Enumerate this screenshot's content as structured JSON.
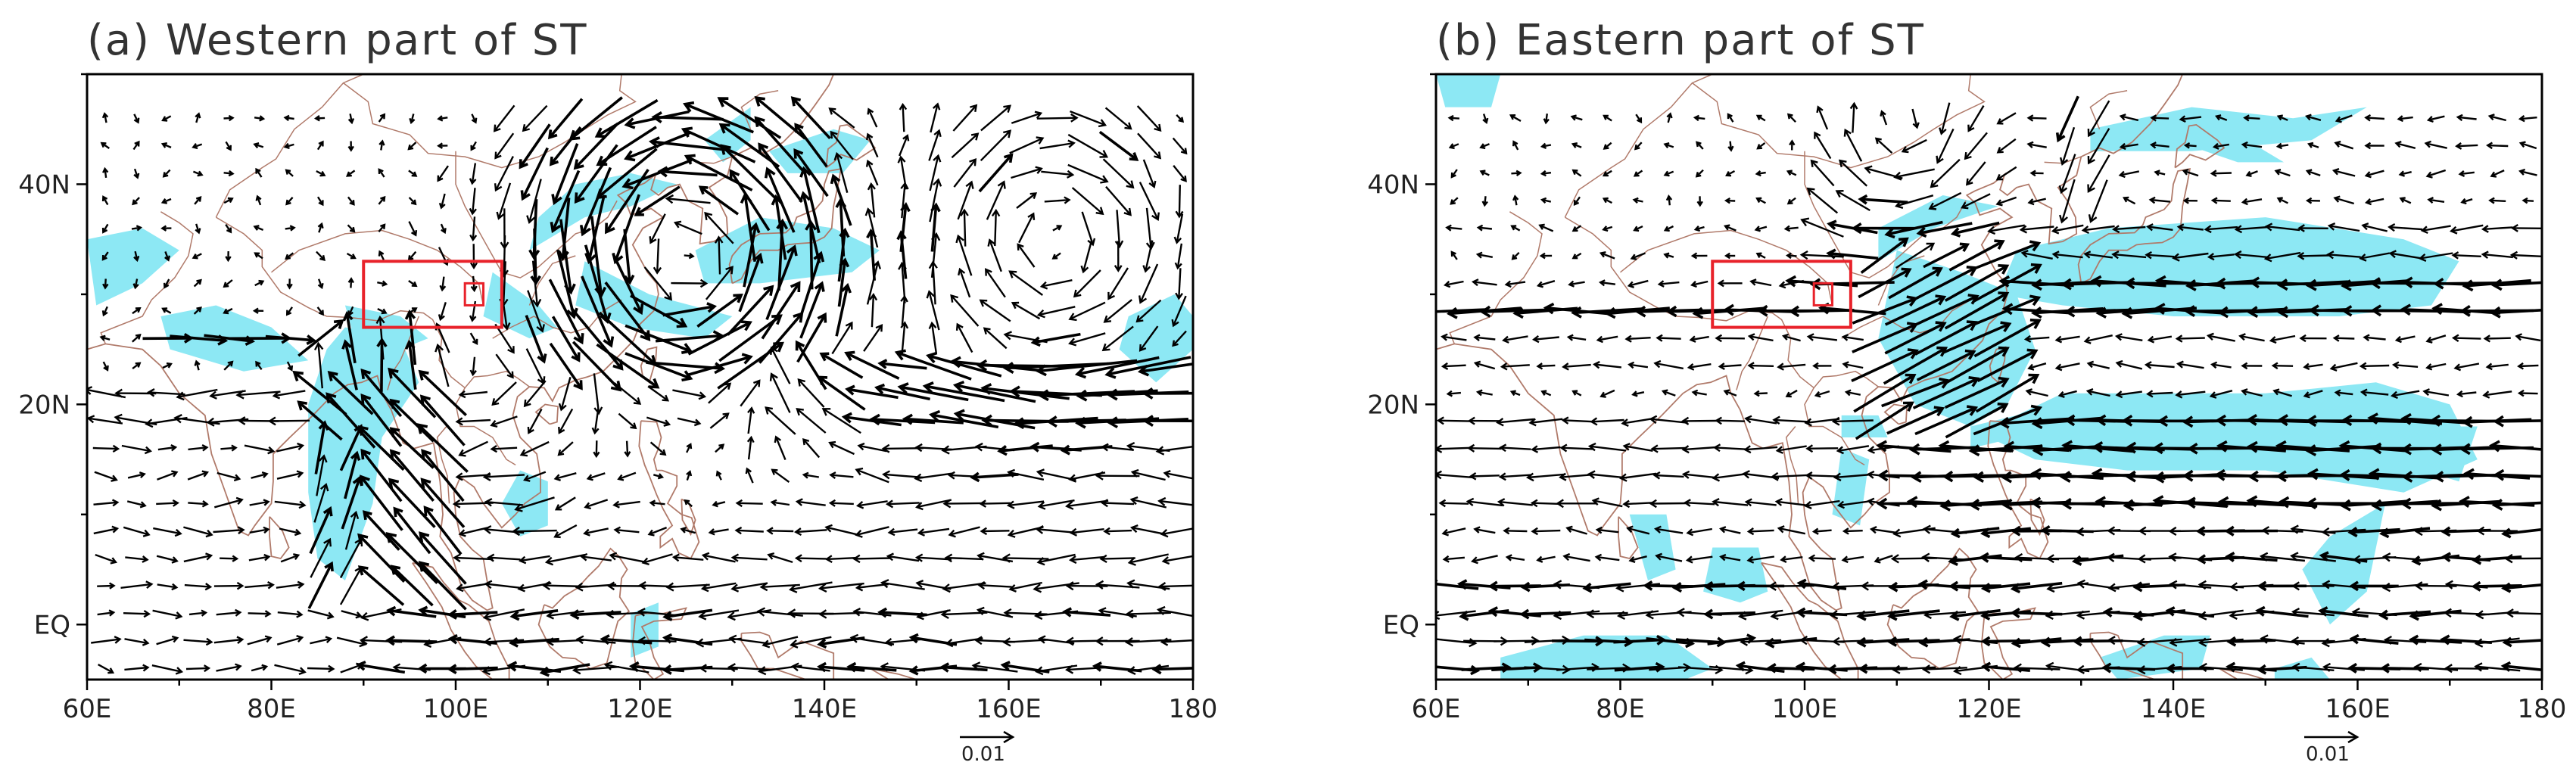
{
  "figure": {
    "panels": [
      {
        "id": "a",
        "title": "(a) Western part of ST",
        "lon_range": [
          60,
          180
        ],
        "lat_range": [
          -5,
          50
        ],
        "x_ticks": [
          {
            "value": 60,
            "label": "60E"
          },
          {
            "value": 80,
            "label": "80E"
          },
          {
            "value": 100,
            "label": "100E"
          },
          {
            "value": 120,
            "label": "120E"
          },
          {
            "value": 140,
            "label": "140E"
          },
          {
            "value": 160,
            "label": "160E"
          },
          {
            "value": 180,
            "label": "180"
          }
        ],
        "y_ticks": [
          {
            "value": 0,
            "label": "EQ"
          },
          {
            "value": 20,
            "label": "20N"
          },
          {
            "value": 40,
            "label": "40N"
          }
        ],
        "reference_vector": {
          "label": "0.01"
        },
        "region_box": {
          "lon": [
            90,
            105
          ],
          "lat": [
            27,
            33
          ]
        },
        "sub_box": {
          "lon": [
            101,
            103
          ],
          "lat": [
            29,
            31
          ]
        },
        "shading_color": "#8de8f4",
        "shaded_areas": [
          [
            [
              60,
              35
            ],
            [
              66,
              36
            ],
            [
              70,
              34
            ],
            [
              66,
              31
            ],
            [
              61,
              29
            ]
          ],
          [
            [
              68,
              28
            ],
            [
              74,
              29
            ],
            [
              80,
              27
            ],
            [
              84,
              24
            ],
            [
              77,
              23
            ],
            [
              69,
              25
            ]
          ],
          [
            [
              88,
              27
            ],
            [
              94,
              26
            ],
            [
              96,
              22
            ],
            [
              92,
              17
            ],
            [
              91,
              11
            ],
            [
              88,
              4
            ],
            [
              85,
              6
            ],
            [
              84,
              12
            ],
            [
              84,
              20
            ],
            [
              86,
              25
            ]
          ],
          [
            [
              88,
              29
            ],
            [
              94,
              28
            ],
            [
              97,
              26
            ],
            [
              94,
              25
            ],
            [
              89,
              26
            ]
          ],
          [
            [
              108,
              34
            ],
            [
              114,
              37
            ],
            [
              119,
              38
            ],
            [
              124,
              40
            ],
            [
              119,
              41
            ],
            [
              113,
              40
            ],
            [
              109,
              37
            ]
          ],
          [
            [
              104,
              32
            ],
            [
              109,
              29
            ],
            [
              111,
              27
            ],
            [
              108,
              26
            ],
            [
              103,
              28
            ]
          ],
          [
            [
              114,
              33
            ],
            [
              121,
              30
            ],
            [
              130,
              28
            ],
            [
              127,
              26
            ],
            [
              119,
              27
            ],
            [
              113,
              29
            ]
          ],
          [
            [
              126,
              34
            ],
            [
              133,
              37
            ],
            [
              141,
              36
            ],
            [
              146,
              34
            ],
            [
              143,
              32
            ],
            [
              133,
              31
            ],
            [
              127,
              31
            ]
          ],
          [
            [
              134,
              43
            ],
            [
              141,
              45
            ],
            [
              145,
              44
            ],
            [
              142,
              41
            ],
            [
              136,
              41
            ]
          ],
          [
            [
              127,
              44
            ],
            [
              132,
              47
            ],
            [
              132,
              44
            ],
            [
              129,
              42
            ]
          ],
          [
            [
              173,
              28
            ],
            [
              178,
              30
            ],
            [
              180,
              28
            ],
            [
              180,
              25
            ],
            [
              176,
              22
            ],
            [
              172,
              25
            ]
          ],
          [
            [
              107,
              14
            ],
            [
              110,
              13
            ],
            [
              110,
              9
            ],
            [
              107,
              8
            ],
            [
              105,
              11
            ]
          ],
          [
            [
              119,
              1
            ],
            [
              122,
              2
            ],
            [
              122,
              -2
            ],
            [
              119,
              -3
            ]
          ]
        ]
      },
      {
        "id": "b",
        "title": "(b) Eastern part of ST",
        "lon_range": [
          60,
          180
        ],
        "lat_range": [
          -5,
          50
        ],
        "x_ticks": [
          {
            "value": 60,
            "label": "60E"
          },
          {
            "value": 80,
            "label": "80E"
          },
          {
            "value": 100,
            "label": "100E"
          },
          {
            "value": 120,
            "label": "120E"
          },
          {
            "value": 140,
            "label": "140E"
          },
          {
            "value": 160,
            "label": "160E"
          },
          {
            "value": 180,
            "label": "180"
          }
        ],
        "y_ticks": [
          {
            "value": 0,
            "label": "EQ"
          },
          {
            "value": 20,
            "label": "20N"
          },
          {
            "value": 40,
            "label": "40N"
          }
        ],
        "reference_vector": {
          "label": "0.01"
        },
        "region_box": {
          "lon": [
            90,
            105
          ],
          "lat": [
            27,
            33
          ]
        },
        "sub_box": {
          "lon": [
            101,
            103
          ],
          "lat": [
            29,
            31
          ]
        },
        "shading_color": "#8de8f4",
        "shaded_areas": [
          [
            [
              60,
              50
            ],
            [
              67,
              50
            ],
            [
              66,
              47
            ],
            [
              61,
              47
            ]
          ],
          [
            [
              108,
              33
            ],
            [
              114,
              36
            ],
            [
              121,
              38
            ],
            [
              115,
              39
            ],
            [
              108,
              36
            ]
          ],
          [
            [
              131,
              45
            ],
            [
              142,
              47
            ],
            [
              153,
              46
            ],
            [
              161,
              47
            ],
            [
              155,
              44
            ],
            [
              142,
              43
            ],
            [
              131,
              43
            ]
          ],
          [
            [
              142,
              46
            ],
            [
              148,
              44
            ],
            [
              152,
              42
            ],
            [
              147,
              42
            ],
            [
              140,
              44
            ]
          ],
          [
            [
              123,
              34
            ],
            [
              133,
              36
            ],
            [
              150,
              37
            ],
            [
              165,
              35
            ],
            [
              171,
              33
            ],
            [
              168,
              29
            ],
            [
              158,
              28
            ],
            [
              140,
              28
            ],
            [
              128,
              29
            ],
            [
              121,
              30
            ]
          ],
          [
            [
              110,
              34
            ],
            [
              117,
              32
            ],
            [
              123,
              30
            ],
            [
              125,
              25
            ],
            [
              122,
              20
            ],
            [
              118,
              18
            ],
            [
              112,
              20
            ],
            [
              108,
              26
            ]
          ],
          [
            [
              104,
              19
            ],
            [
              108,
              19
            ],
            [
              109,
              17
            ],
            [
              104,
              17
            ]
          ],
          [
            [
              118,
              18
            ],
            [
              123,
              19
            ],
            [
              123,
              17
            ],
            [
              118,
              16
            ]
          ],
          [
            [
              123,
              19
            ],
            [
              128,
              21
            ],
            [
              135,
              21
            ],
            [
              150,
              21
            ],
            [
              162,
              22
            ],
            [
              170,
              20
            ],
            [
              173,
              15
            ],
            [
              165,
              12
            ],
            [
              150,
              14
            ],
            [
              135,
              14
            ],
            [
              125,
              15
            ],
            [
              120,
              17
            ]
          ],
          [
            [
              167,
              18
            ],
            [
              173,
              18
            ],
            [
              171,
              13
            ],
            [
              167,
              14
            ]
          ],
          [
            [
              157,
              8
            ],
            [
              163,
              11
            ],
            [
              161,
              3
            ],
            [
              157,
              0
            ],
            [
              154,
              5
            ]
          ],
          [
            [
              104,
              16
            ],
            [
              107,
              15
            ],
            [
              106,
              9
            ],
            [
              103,
              10
            ]
          ],
          [
            [
              81,
              10
            ],
            [
              85,
              10
            ],
            [
              86,
              5
            ],
            [
              83,
              4
            ]
          ],
          [
            [
              90,
              7
            ],
            [
              95,
              7
            ],
            [
              96,
              3
            ],
            [
              93,
              2
            ],
            [
              89,
              3
            ]
          ],
          [
            [
              67,
              -3
            ],
            [
              76,
              -1
            ],
            [
              85,
              -1
            ],
            [
              90,
              -4
            ],
            [
              87,
              -5
            ],
            [
              67,
              -5
            ]
          ],
          [
            [
              132,
              -3
            ],
            [
              139,
              -1
            ],
            [
              144,
              -1
            ],
            [
              143,
              -4
            ],
            [
              134,
              -5
            ]
          ],
          [
            [
              151,
              -4
            ],
            [
              155,
              -3
            ],
            [
              157,
              -5
            ],
            [
              151,
              -5
            ]
          ]
        ]
      }
    ]
  }
}
